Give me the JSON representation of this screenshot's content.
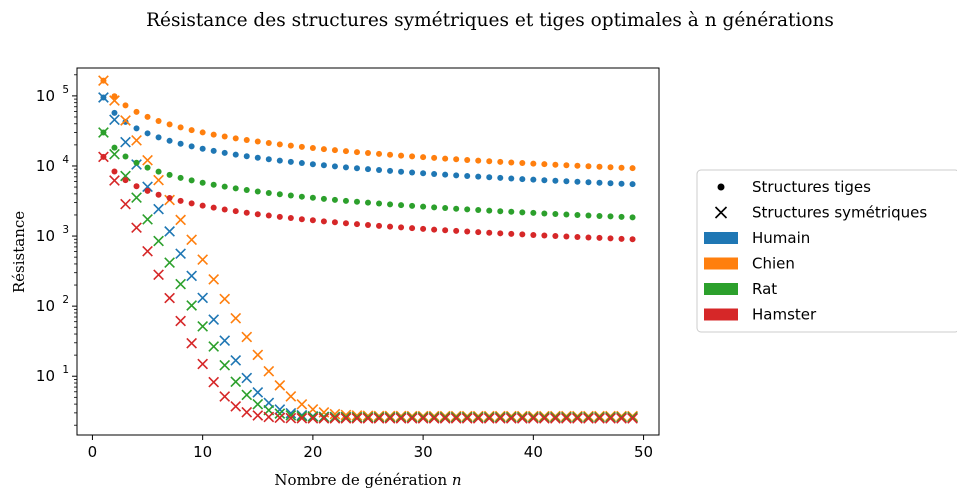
{
  "chart_data": {
    "type": "scatter",
    "title": "Résistance des structures symétriques et tiges optimales à n générations",
    "xlabel": "Nombre de génération",
    "xlabel_var": "n",
    "ylabel": "Résistance",
    "y_scale": "log",
    "xlim": [
      -1.4,
      51.4
    ],
    "ylim": [
      1.45,
      250000
    ],
    "x_ticks": [
      0,
      10,
      20,
      30,
      40,
      50
    ],
    "y_ticks": [
      {
        "base": "10",
        "exp": "1",
        "value": 10
      },
      {
        "base": "10",
        "exp": "2",
        "value": 100
      },
      {
        "base": "10",
        "exp": "3",
        "value": 1000
      },
      {
        "base": "10",
        "exp": "4",
        "value": 10000
      },
      {
        "base": "10",
        "exp": "5",
        "value": 100000
      }
    ],
    "legend_position": "right",
    "legend": [
      {
        "label": "Structures tiges",
        "marker": "dot"
      },
      {
        "label": "Structures symétriques",
        "marker": "x"
      },
      {
        "label": "Humain",
        "marker": "patch",
        "color": "#1f77b4"
      },
      {
        "label": "Chien",
        "marker": "patch",
        "color": "#ff7f0e"
      },
      {
        "label": "Rat",
        "marker": "patch",
        "color": "#2ca02c"
      },
      {
        "label": "Hamster",
        "marker": "patch",
        "color": "#d62728"
      }
    ],
    "n_range": [
      1,
      49
    ],
    "series": [
      {
        "name": "Humain",
        "color": "#1f77b4",
        "tiges_start": 95000,
        "tiges_end": 5500,
        "sym_start": 95000,
        "sym_plateau": 2.6,
        "sym_ratio": 0.48
      },
      {
        "name": "Chien",
        "color": "#ff7f0e",
        "tiges_start": 165000,
        "tiges_end": 9300,
        "sym_start": 165000,
        "sym_plateau": 2.7,
        "sym_ratio": 0.52
      },
      {
        "name": "Rat",
        "color": "#2ca02c",
        "tiges_start": 30000,
        "tiges_end": 1850,
        "sym_start": 30000,
        "sym_plateau": 2.6,
        "sym_ratio": 0.49
      },
      {
        "name": "Hamster",
        "color": "#d62728",
        "tiges_start": 13500,
        "tiges_end": 900,
        "sym_start": 13500,
        "sym_plateau": 2.5,
        "sym_ratio": 0.46
      }
    ]
  }
}
